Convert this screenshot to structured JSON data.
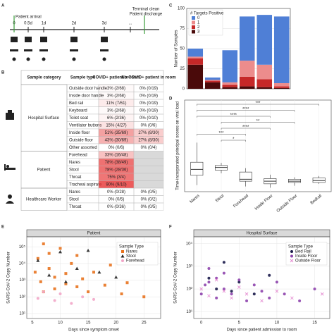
{
  "panel_labels": [
    "A",
    "B",
    "C",
    "D",
    "E",
    "F"
  ],
  "timeline": {
    "ticks": [
      "0",
      "0.5d",
      "1d",
      "2d",
      "3d",
      "..."
    ],
    "events": [
      "Patient arrival",
      "Terminal clean",
      "Patient discharge"
    ]
  },
  "table": {
    "header": [
      "Sample category",
      "Sample type",
      "COVID+ patient in room",
      "No COVID+ patient in room"
    ],
    "groups": [
      {
        "category": "Hospital Surface",
        "rows": [
          [
            "Outside door handle",
            "3% (2/68)",
            "0% (0/19)"
          ],
          [
            "Inside door handle",
            "3% (2/68)",
            "0% (0/19)"
          ],
          [
            "Bed rail",
            "11% (7/61)",
            "0% (0/19)"
          ],
          [
            "Keyboard",
            "3% (2/68)",
            "0% (0/19)"
          ],
          [
            "Toilet seat",
            "6% (2/36)",
            "0% (0/10)"
          ],
          [
            "Ventilator buttons",
            "15% (4/27)",
            "0% (0/6)"
          ],
          [
            "Inside floor",
            "51% (35/69)",
            "27% (8/30)"
          ],
          [
            "Outside floor",
            "43% (30/69)",
            "27% (8/30)"
          ],
          [
            "Other assorted",
            "0% (0/6)",
            "0% (0/4)"
          ]
        ]
      },
      {
        "category": "Patient",
        "rows": [
          [
            "Forehead",
            "33% (16/48)"
          ],
          [
            "Nares",
            "78% (38/49)"
          ],
          [
            "Stool",
            "78% (28/36)"
          ],
          [
            "Throat",
            "75% (3/4)"
          ],
          [
            "Tracheal aspirate",
            "90% (9/10)"
          ]
        ]
      },
      {
        "category": "Healthcare Worker",
        "rows": [
          [
            "Nares",
            "0% (0/28)",
            "0% (0/5)"
          ],
          [
            "Stool",
            "0% (0/5)",
            "0% (0/2)"
          ],
          [
            "Throat",
            "0% (0/36)",
            "0% (0/5)"
          ]
        ]
      }
    ]
  },
  "chart_data": [
    {
      "type": "stacked_bar",
      "y_label": "Number of Samples",
      "legend_title": "# Targets Positive",
      "categories": [
        null,
        null,
        null,
        null,
        null,
        null
      ],
      "series": [
        {
          "name": "0",
          "color": "#4f7fd6",
          "values": [
            10,
            3,
            40,
            55,
            62,
            83
          ]
        },
        {
          "name": "1",
          "color": "#ec8c8c",
          "values": [
            2,
            1,
            3,
            20,
            18,
            4
          ]
        },
        {
          "name": "2",
          "color": "#c62828",
          "values": [
            8,
            2,
            3,
            12,
            10,
            2
          ]
        },
        {
          "name": "3",
          "color": "#4a0a0a",
          "values": [
            30,
            8,
            2,
            3,
            2,
            1
          ]
        }
      ],
      "ylim": [
        0,
        100
      ],
      "yticks": [
        0,
        25,
        50,
        75,
        100
      ],
      "grid": true
    },
    {
      "type": "box",
      "y_label": "Time-incorporated principal scores on viral load",
      "categories": [
        "Nares",
        "Stool",
        "Forehead",
        "Inside Floor",
        "Outside Floor",
        "Bedrail"
      ],
      "boxes": [
        {
          "low": 1.0,
          "q1": 2.5,
          "median": 3.4,
          "q3": 4.5,
          "high": 7.5
        },
        {
          "low": 2.8,
          "q1": 3.3,
          "median": 3.7,
          "q3": 4.0,
          "high": 4.4
        },
        {
          "low": 0.8,
          "q1": 1.6,
          "median": 1.9,
          "q3": 3.0,
          "high": 3.6
        },
        {
          "low": 0.6,
          "q1": 1.2,
          "median": 1.6,
          "q3": 2.0,
          "high": 2.6
        },
        {
          "low": 0.9,
          "q1": 1.4,
          "median": 1.6,
          "q3": 1.9,
          "high": 2.2
        },
        {
          "low": 1.2,
          "q1": 1.4,
          "median": 1.7,
          "q3": 2.1,
          "high": 2.4
        }
      ],
      "comparisons": [
        {
          "from": "Nares",
          "to": "Bedrail",
          "label": "***"
        },
        {
          "from": "Nares",
          "to": "Outside Floor",
          "label": "****"
        },
        {
          "from": "Nares",
          "to": "Inside Floor",
          "label": "****"
        },
        {
          "from": "Stool",
          "to": "Outside Floor",
          "label": "**"
        },
        {
          "from": "Stool",
          "to": "Inside Floor",
          "label": "****"
        },
        {
          "from": "Nares",
          "to": "Forehead",
          "label": "***"
        },
        {
          "from": "Stool",
          "to": "Forehead",
          "label": "*"
        }
      ],
      "ylim": [
        0,
        14
      ],
      "grid": true,
      "color": "#e8a0a0"
    },
    {
      "type": "scatter",
      "strip": "Patient",
      "x_label": "Days since symptom onset",
      "y_label": "SARS-CoV-2 Copy Number",
      "legend_title": "Sample Type",
      "log_y": true,
      "series": [
        {
          "name": "Nares",
          "color": "#e8731f",
          "marker": "square",
          "x": [
            5.5,
            6,
            6.5,
            7,
            7,
            8,
            8,
            9,
            9,
            10,
            11,
            11,
            12,
            13,
            13,
            14,
            15,
            16,
            18,
            19,
            21,
            22,
            25
          ],
          "values": [
            3000,
            20000,
            800,
            150000,
            200,
            5000,
            40000,
            1500,
            300,
            80000,
            2500,
            600,
            10000,
            400,
            30000,
            1200,
            200,
            3000,
            500,
            8000,
            150,
            700,
            100
          ]
        },
        {
          "name": "Stool",
          "color": "#222222",
          "marker": "triangle",
          "x": [
            6,
            8,
            10,
            11,
            13,
            15,
            17,
            20
          ],
          "values": [
            15000,
            2000,
            50000,
            800,
            5000,
            60000,
            3000,
            1500
          ]
        },
        {
          "name": "Forehead",
          "color": "#f2a6c8",
          "marker": "circle",
          "x": [
            6,
            7,
            9,
            10,
            12,
            14,
            16
          ],
          "values": [
            80,
            200,
            60,
            150,
            40,
            100,
            70
          ]
        }
      ],
      "xlim": [
        4,
        28
      ],
      "xticks": [
        5,
        10,
        15,
        20,
        25
      ],
      "ylim": [
        5,
        400000
      ],
      "yticks": [
        {
          "value": 10,
          "label": "10¹"
        },
        {
          "value": 100,
          "label": "10²"
        },
        {
          "value": 1000,
          "label": "10³"
        },
        {
          "value": 10000,
          "label": "10⁴"
        },
        {
          "value": 100000,
          "label": "10⁵"
        }
      ],
      "grid": true
    },
    {
      "type": "scatter",
      "strip": "Hospital Surface",
      "x_label": "Days since patient admission to room",
      "y_label": "SARS-CoV-2 Copy Number",
      "legend_title": "Sample Type",
      "log_y": true,
      "series": [
        {
          "name": "Bed Rail",
          "color": "#1a1a4a",
          "marker": "circle",
          "x": [
            1,
            2,
            3,
            4,
            5,
            7,
            9
          ],
          "values": [
            300,
            100,
            1500,
            80,
            200,
            60,
            400
          ]
        },
        {
          "name": "Inside Floor",
          "color": "#8e44ad",
          "marker": "circle",
          "x": [
            0,
            0.5,
            1,
            1,
            2,
            2,
            3,
            3,
            4,
            5,
            6,
            7,
            8,
            9,
            10,
            11,
            13,
            15
          ],
          "values": [
            60,
            150,
            800,
            200,
            40,
            300,
            100,
            500,
            60,
            250,
            30,
            150,
            80,
            40,
            200,
            60,
            30,
            100
          ]
        },
        {
          "name": "Outside Floor",
          "color": "#e48bd0",
          "marker": "x",
          "x": [
            0,
            1,
            2,
            3,
            4,
            5,
            6,
            8,
            10,
            12,
            16
          ],
          "values": [
            100,
            50,
            250,
            80,
            40,
            120,
            60,
            30,
            80,
            40,
            60
          ]
        }
      ],
      "xlim": [
        -1,
        17
      ],
      "xticks": [
        0,
        5,
        10,
        15
      ],
      "ylim": [
        5,
        20000
      ],
      "yticks": [
        {
          "value": 10,
          "label": "10¹"
        },
        {
          "value": 100,
          "label": "10²"
        },
        {
          "value": 1000,
          "label": "10³"
        },
        {
          "value": 10000,
          "label": "10⁴"
        }
      ],
      "grid": true
    }
  ]
}
